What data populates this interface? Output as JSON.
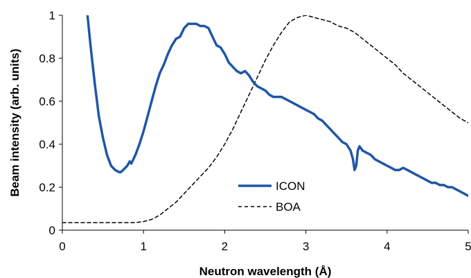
{
  "chart_data": {
    "type": "line",
    "xlabel": "Neutron wavelength (Å)",
    "ylabel": "Beam intensity (arb. units)",
    "xlim": [
      0,
      5
    ],
    "ylim": [
      0,
      1
    ],
    "x_ticks": [
      "0",
      "1",
      "2",
      "3",
      "4",
      "5"
    ],
    "y_ticks": [
      "0",
      "0.2",
      "0.4",
      "0.6",
      "0.8",
      "1"
    ],
    "grid": false,
    "legend_position": "bottom-center",
    "series": [
      {
        "name": "ICON",
        "color": "#1f56a5",
        "style": "solid",
        "x": [
          0.31,
          0.35,
          0.4,
          0.45,
          0.5,
          0.55,
          0.6,
          0.65,
          0.7,
          0.72,
          0.75,
          0.8,
          0.83,
          0.85,
          0.9,
          0.95,
          1.0,
          1.05,
          1.1,
          1.15,
          1.2,
          1.25,
          1.3,
          1.35,
          1.4,
          1.45,
          1.5,
          1.55,
          1.6,
          1.65,
          1.7,
          1.75,
          1.8,
          1.85,
          1.9,
          1.95,
          2.0,
          2.05,
          2.1,
          2.15,
          2.2,
          2.25,
          2.3,
          2.35,
          2.4,
          2.45,
          2.5,
          2.55,
          2.6,
          2.65,
          2.7,
          2.75,
          2.8,
          2.85,
          2.9,
          2.95,
          3.0,
          3.05,
          3.1,
          3.15,
          3.2,
          3.25,
          3.3,
          3.35,
          3.4,
          3.45,
          3.5,
          3.55,
          3.58,
          3.6,
          3.62,
          3.64,
          3.66,
          3.7,
          3.75,
          3.8,
          3.85,
          3.9,
          3.95,
          4.0,
          4.05,
          4.1,
          4.15,
          4.2,
          4.25,
          4.3,
          4.35,
          4.4,
          4.45,
          4.5,
          4.55,
          4.6,
          4.65,
          4.7,
          4.75,
          4.8,
          4.85,
          4.9,
          4.95,
          5.0
        ],
        "values": [
          1.0,
          0.85,
          0.68,
          0.53,
          0.43,
          0.35,
          0.3,
          0.28,
          0.27,
          0.27,
          0.28,
          0.3,
          0.32,
          0.31,
          0.35,
          0.4,
          0.46,
          0.53,
          0.6,
          0.67,
          0.73,
          0.77,
          0.82,
          0.86,
          0.89,
          0.9,
          0.94,
          0.96,
          0.96,
          0.96,
          0.95,
          0.95,
          0.94,
          0.9,
          0.86,
          0.85,
          0.82,
          0.78,
          0.76,
          0.74,
          0.73,
          0.74,
          0.72,
          0.69,
          0.67,
          0.66,
          0.65,
          0.63,
          0.62,
          0.62,
          0.62,
          0.61,
          0.6,
          0.59,
          0.58,
          0.57,
          0.56,
          0.55,
          0.54,
          0.52,
          0.51,
          0.49,
          0.47,
          0.45,
          0.43,
          0.41,
          0.4,
          0.37,
          0.33,
          0.28,
          0.3,
          0.37,
          0.39,
          0.37,
          0.36,
          0.35,
          0.33,
          0.32,
          0.31,
          0.3,
          0.29,
          0.28,
          0.28,
          0.29,
          0.28,
          0.27,
          0.26,
          0.25,
          0.24,
          0.23,
          0.22,
          0.22,
          0.21,
          0.21,
          0.2,
          0.2,
          0.19,
          0.18,
          0.17,
          0.16
        ]
      },
      {
        "name": "BOA",
        "color": "#000000",
        "style": "dashed",
        "x": [
          0,
          0.5,
          0.8,
          0.9,
          1.0,
          1.1,
          1.2,
          1.3,
          1.4,
          1.5,
          1.6,
          1.7,
          1.8,
          1.9,
          2.0,
          2.1,
          2.2,
          2.3,
          2.4,
          2.5,
          2.6,
          2.7,
          2.8,
          2.9,
          3.0,
          3.1,
          3.2,
          3.3,
          3.4,
          3.5,
          3.6,
          3.7,
          3.8,
          3.9,
          4.0,
          4.1,
          4.2,
          4.3,
          4.4,
          4.5,
          4.6,
          4.7,
          4.8,
          4.9,
          5.0
        ],
        "values": [
          0.035,
          0.035,
          0.035,
          0.035,
          0.04,
          0.05,
          0.07,
          0.1,
          0.13,
          0.17,
          0.21,
          0.25,
          0.29,
          0.34,
          0.4,
          0.47,
          0.55,
          0.63,
          0.71,
          0.79,
          0.86,
          0.92,
          0.97,
          0.99,
          1.0,
          0.99,
          0.98,
          0.97,
          0.95,
          0.94,
          0.92,
          0.89,
          0.86,
          0.83,
          0.8,
          0.77,
          0.73,
          0.7,
          0.67,
          0.64,
          0.61,
          0.58,
          0.55,
          0.52,
          0.5
        ]
      }
    ]
  }
}
